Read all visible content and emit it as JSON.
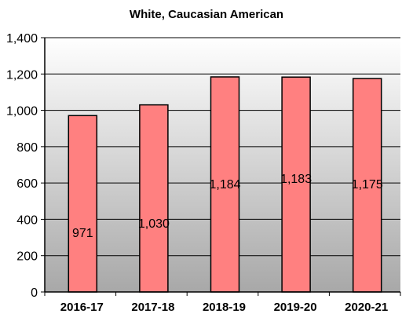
{
  "chart_data": {
    "type": "bar",
    "title": "White, Caucasian American",
    "categories": [
      "2016-17",
      "2017-18",
      "2018-19",
      "2019-20",
      "2020-21"
    ],
    "values": [
      971,
      1030,
      1184,
      1183,
      1175
    ],
    "data_labels": [
      "971",
      "1,030",
      "1,184",
      "1,183",
      "1,175"
    ],
    "ylim": [
      0,
      1400
    ],
    "yticks": [
      0,
      200,
      400,
      600,
      800,
      1000,
      1200,
      1400
    ],
    "ytick_labels": [
      "0",
      "200",
      "400",
      "600",
      "800",
      "1,000",
      "1,200",
      "1,400"
    ],
    "grid": true,
    "legend": "none",
    "colors": {
      "bar_fill": "#ff8080",
      "bar_stroke": "#000000",
      "plot_bg_top": "#ffffff",
      "plot_bg_bottom": "#a8a8a8",
      "grid": "#000000"
    }
  }
}
